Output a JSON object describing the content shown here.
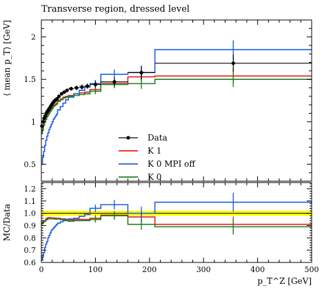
{
  "chart_data": {
    "type": "line",
    "title": "Transverse region, dressed level",
    "bin_edges": [
      0,
      2,
      4,
      6,
      8,
      10,
      12,
      14,
      16,
      18,
      20,
      22,
      24,
      26,
      28,
      30,
      35,
      40,
      45,
      50,
      60,
      70,
      80,
      90,
      110,
      160,
      210,
      500
    ],
    "top_panel": {
      "ylabel": "⟨ mean p_T⟩ [GeV]",
      "ylim": [
        0.3,
        2.2
      ],
      "yticks": [
        0.5,
        1,
        1.5,
        2
      ],
      "yticklabels": [
        "0.5",
        "1",
        "1.5",
        "2"
      ]
    },
    "ratio_panel": {
      "ylabel": "MC/Data",
      "ylim": [
        0.6,
        1.25
      ],
      "yticks": [
        0.6,
        0.7,
        0.8,
        0.9,
        1.0,
        1.1,
        1.2
      ],
      "yticklabels": [
        "0.6",
        "0.7",
        "0.8",
        "0.9",
        "1.0",
        "1.1",
        "1.2"
      ],
      "band": {
        "lo": 0.98,
        "hi": 1.02,
        "color": "#ffff00"
      }
    },
    "xlabel": "p_T^Z [GeV]",
    "xlim": [
      0,
      500
    ],
    "xticks": [
      0,
      100,
      200,
      300,
      400,
      500
    ],
    "xticklabels": [
      "0",
      "100",
      "200",
      "300",
      "400",
      "500"
    ],
    "legend_position": "lower-center",
    "data": {
      "name": "Data",
      "color": "#000000",
      "values": [
        0.95,
        1.0,
        1.04,
        1.07,
        1.1,
        1.12,
        1.14,
        1.16,
        1.18,
        1.2,
        1.22,
        1.235,
        1.25,
        1.26,
        1.27,
        1.3,
        1.33,
        1.35,
        1.37,
        1.39,
        1.4,
        1.41,
        1.42,
        1.44,
        1.47,
        1.58,
        1.69
      ],
      "errors": [
        0.01,
        0.01,
        0.01,
        0.01,
        0.01,
        0.01,
        0.01,
        0.01,
        0.01,
        0.01,
        0.01,
        0.01,
        0.01,
        0.01,
        0.01,
        0.01,
        0.015,
        0.02,
        0.02,
        0.02,
        0.025,
        0.03,
        0.03,
        0.04,
        0.05,
        0.08,
        0.1
      ]
    },
    "series": [
      {
        "name": "K 1",
        "color": "#e02020",
        "values": [
          0.87,
          0.93,
          0.98,
          1.01,
          1.05,
          1.08,
          1.1,
          1.12,
          1.14,
          1.15,
          1.17,
          1.19,
          1.2,
          1.21,
          1.22,
          1.25,
          1.27,
          1.29,
          1.3,
          1.31,
          1.33,
          1.34,
          1.35,
          1.38,
          1.45,
          1.53,
          1.54
        ],
        "ratio": [
          0.92,
          0.93,
          0.94,
          0.94,
          0.955,
          0.96,
          0.965,
          0.965,
          0.965,
          0.96,
          0.96,
          0.963,
          0.96,
          0.96,
          0.96,
          0.96,
          0.955,
          0.955,
          0.95,
          0.945,
          0.95,
          0.95,
          0.95,
          0.96,
          0.985,
          0.97,
          0.91
        ]
      },
      {
        "name": "K 0 MPI off",
        "color": "#1f5fe0",
        "values": [
          0.5,
          0.58,
          0.65,
          0.72,
          0.78,
          0.83,
          0.87,
          0.91,
          0.94,
          0.97,
          1.0,
          1.03,
          1.05,
          1.07,
          1.09,
          1.14,
          1.18,
          1.22,
          1.26,
          1.29,
          1.33,
          1.37,
          1.41,
          1.45,
          1.56,
          1.58,
          1.85
        ],
        "ratio": [
          0.62,
          0.65,
          0.68,
          0.72,
          0.75,
          0.77,
          0.8,
          0.82,
          0.84,
          0.86,
          0.87,
          0.88,
          0.89,
          0.9,
          0.91,
          0.92,
          0.93,
          0.94,
          0.95,
          0.955,
          0.96,
          0.975,
          0.99,
          1.04,
          1.07,
          1.0,
          1.09
        ]
      },
      {
        "name": "K 0",
        "color": "#208020",
        "values": [
          0.86,
          0.92,
          0.96,
          1.0,
          1.03,
          1.06,
          1.08,
          1.1,
          1.12,
          1.14,
          1.16,
          1.18,
          1.19,
          1.2,
          1.21,
          1.24,
          1.26,
          1.28,
          1.29,
          1.3,
          1.31,
          1.32,
          1.33,
          1.36,
          1.44,
          1.45,
          1.5
        ],
        "ratio": [
          0.91,
          0.92,
          0.93,
          0.935,
          0.945,
          0.95,
          0.955,
          0.955,
          0.955,
          0.955,
          0.955,
          0.955,
          0.953,
          0.952,
          0.953,
          0.954,
          0.948,
          0.948,
          0.94,
          0.935,
          0.94,
          0.94,
          0.94,
          0.95,
          0.98,
          0.91,
          0.89
        ]
      }
    ]
  }
}
